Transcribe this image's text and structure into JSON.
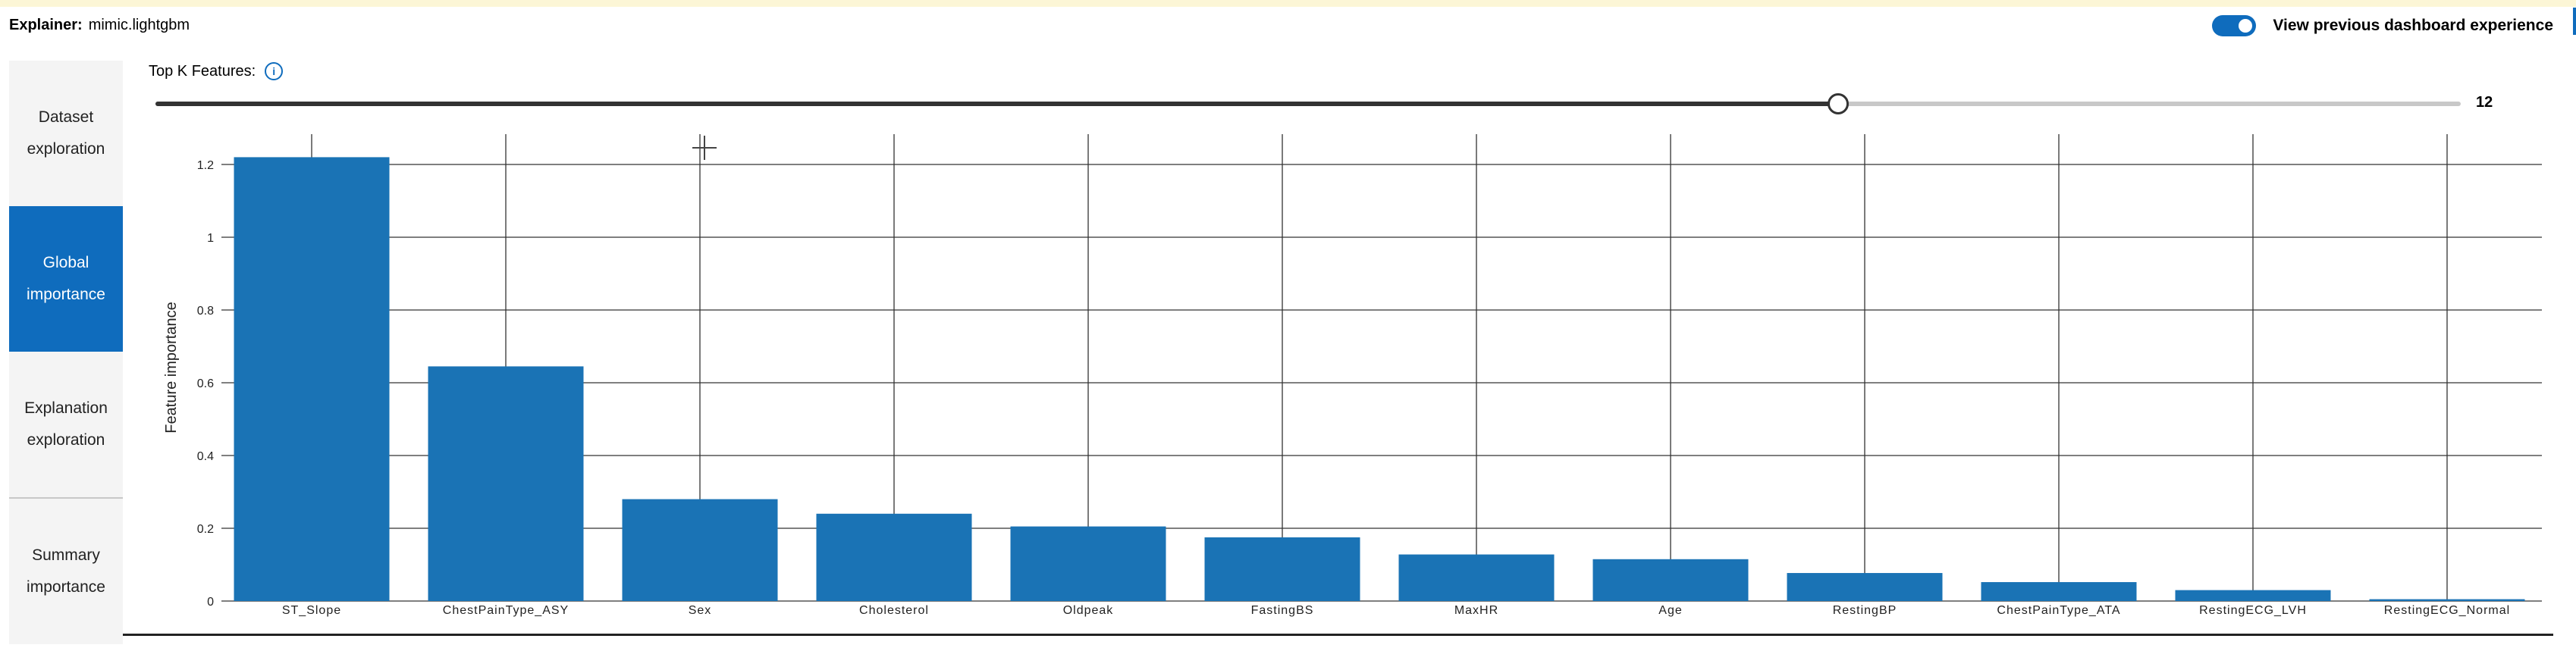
{
  "header": {
    "explainer_label": "Explainer:",
    "explainer_value": "mimic.lightgbm",
    "toggle_label": "View previous dashboard experience",
    "toggle_on": true
  },
  "sidebar": {
    "items": [
      {
        "line1": "Dataset",
        "line2": "exploration",
        "active": false
      },
      {
        "line1": "Global",
        "line2": "importance",
        "active": true
      },
      {
        "line1": "Explanation",
        "line2": "exploration",
        "active": false
      },
      {
        "line1": "Summary",
        "line2": "importance",
        "active": false
      }
    ]
  },
  "controls": {
    "topk_label": "Top K Features:",
    "topk_value": "12",
    "topk_fraction": 0.73
  },
  "colors": {
    "bar": "#1a73b5",
    "accent": "#0f6cbd",
    "grid": "#333333"
  },
  "chart_data": {
    "type": "bar",
    "categories": [
      "ST_Slope",
      "ChestPainType_ASY",
      "Sex",
      "Cholesterol",
      "Oldpeak",
      "FastingBS",
      "MaxHR",
      "Age",
      "RestingBP",
      "ChestPainType_ATA",
      "RestingECG_LVH",
      "RestingECG_Normal"
    ],
    "values": [
      1.22,
      0.645,
      0.28,
      0.24,
      0.205,
      0.175,
      0.128,
      0.115,
      0.077,
      0.052,
      0.03,
      0.005
    ],
    "ylabel": "Feature importance",
    "ylim": [
      0,
      1.2
    ],
    "yticks": [
      0,
      0.2,
      0.4,
      0.6,
      0.8,
      1,
      1.2
    ],
    "grid": true
  }
}
